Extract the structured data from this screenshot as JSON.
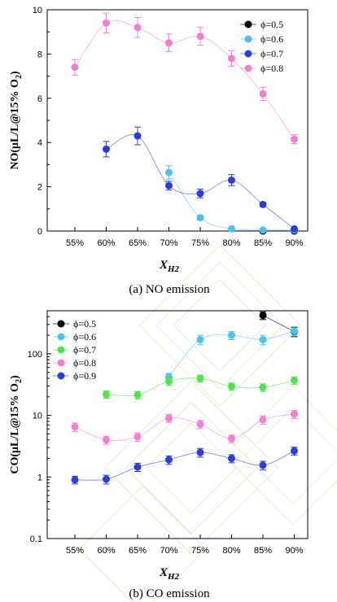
{
  "colors": {
    "phi_05": "#000000",
    "phi_06": "#4cc1ef",
    "phi_07_no": "#2b3fd8",
    "phi_07_co": "#4fe34f",
    "phi_08": "#f07fcf",
    "phi_09": "#2b3fd8"
  },
  "chart_data": [
    {
      "type": "line",
      "title": "",
      "caption": "(a) NO emission",
      "xlabel": "X",
      "xlabel_sub": "H2",
      "ylabel": "NO(μL/L@15% O",
      "ylabel_sub": "2",
      "ylabel_close": ")",
      "categories": [
        "55%",
        "60%",
        "65%",
        "70%",
        "75%",
        "80%",
        "85%",
        "90%"
      ],
      "yticks": [
        "0",
        "2",
        "4",
        "6",
        "8",
        "10"
      ],
      "ylim": [
        0,
        10
      ],
      "scale": "linear",
      "legend": "top-right",
      "grid": false,
      "series": [
        {
          "name": "ϕ=0.5",
          "color_key": "phi_05",
          "values": [
            null,
            null,
            null,
            null,
            null,
            null,
            0.0,
            0.0
          ],
          "err": [
            0,
            0,
            0,
            0,
            0,
            0,
            0.1,
            0.1
          ]
        },
        {
          "name": "ϕ=0.6",
          "color_key": "phi_06",
          "values": [
            null,
            null,
            null,
            2.65,
            0.6,
            0.1,
            0.05,
            0.05
          ],
          "err": [
            0,
            0,
            0,
            0.3,
            0.1,
            0.05,
            0.05,
            0.05
          ]
        },
        {
          "name": "ϕ=0.7",
          "color_key": "phi_07_no",
          "values": [
            null,
            3.7,
            4.3,
            2.05,
            1.7,
            2.3,
            1.2,
            0.1
          ],
          "err": [
            0,
            0.35,
            0.4,
            0.2,
            0.2,
            0.25,
            0.1,
            0.05
          ]
        },
        {
          "name": "ϕ=0.8",
          "color_key": "phi_08",
          "values": [
            7.4,
            9.4,
            9.2,
            8.5,
            8.8,
            7.8,
            6.2,
            4.15
          ],
          "err": [
            0.35,
            0.45,
            0.45,
            0.4,
            0.4,
            0.35,
            0.3,
            0.2
          ]
        }
      ]
    },
    {
      "type": "line",
      "title": "",
      "caption": "(b) CO emission",
      "xlabel": "X",
      "xlabel_sub": "H2",
      "ylabel": "CO(μL/L@15% O",
      "ylabel_sub": "2",
      "ylabel_close": ")",
      "categories": [
        "55%",
        "60%",
        "65%",
        "70%",
        "75%",
        "80%",
        "85%",
        "90%"
      ],
      "yticks": [
        "0.1",
        "1",
        "10",
        "100"
      ],
      "ylim": [
        0.1,
        500
      ],
      "scale": "log",
      "legend": "top-left",
      "grid": false,
      "series": [
        {
          "name": "ϕ=0.5",
          "color_key": "phi_05",
          "values": [
            null,
            null,
            null,
            null,
            null,
            null,
            420,
            230
          ],
          "err": [
            0,
            0,
            0,
            0,
            0,
            0,
            60,
            40
          ]
        },
        {
          "name": "ϕ=0.6",
          "color_key": "phi_06",
          "values": [
            null,
            null,
            null,
            42,
            170,
            200,
            170,
            235
          ],
          "err": [
            0,
            0,
            0,
            6,
            30,
            30,
            30,
            40
          ]
        },
        {
          "name": "ϕ=0.7",
          "color_key": "phi_07_co",
          "values": [
            null,
            22,
            21.5,
            36,
            40,
            29.5,
            28.5,
            37
          ],
          "err": [
            0,
            3,
            3,
            5,
            5,
            4,
            4,
            5
          ]
        },
        {
          "name": "ϕ=0.8",
          "color_key": "phi_08",
          "values": [
            6.5,
            4.0,
            4.5,
            9.0,
            7.2,
            4.2,
            8.5,
            10.5
          ],
          "err": [
            1,
            0.6,
            0.7,
            1.3,
            1.1,
            0.6,
            1.3,
            1.6
          ]
        },
        {
          "name": "ϕ=0.9",
          "color_key": "phi_09",
          "values": [
            0.9,
            0.92,
            1.45,
            1.9,
            2.5,
            2.0,
            1.55,
            2.65
          ],
          "err": [
            0.13,
            0.15,
            0.22,
            0.3,
            0.4,
            0.3,
            0.25,
            0.4
          ]
        }
      ]
    }
  ]
}
